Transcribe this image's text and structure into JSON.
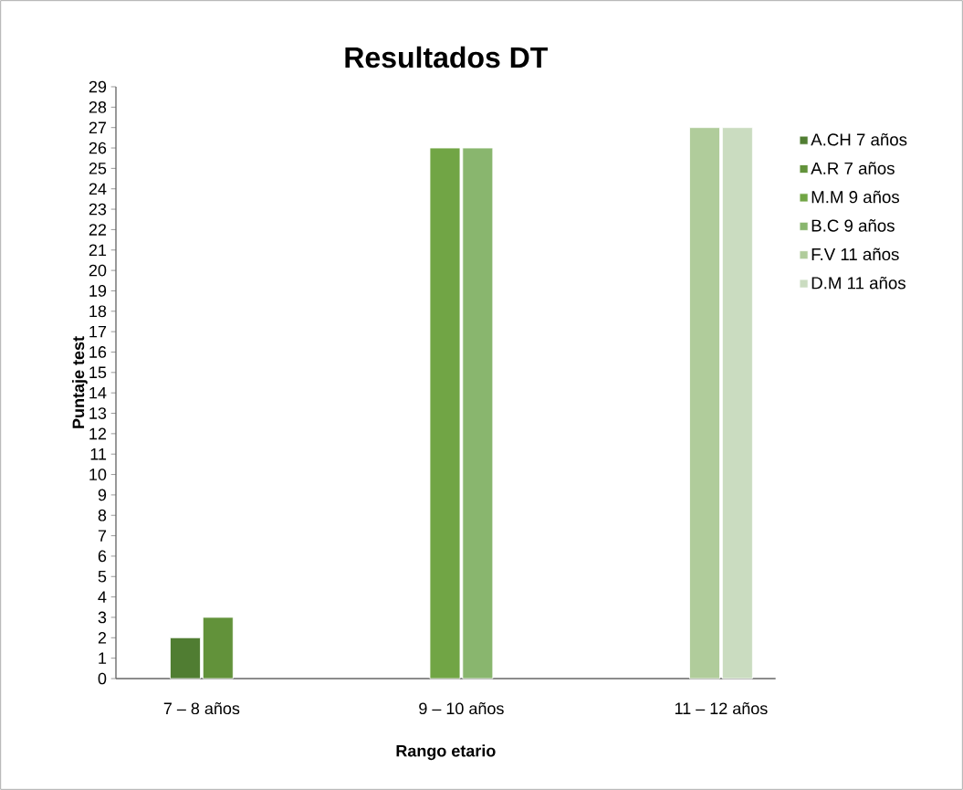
{
  "chart_data": {
    "type": "bar",
    "title": "Resultados DT",
    "xlabel": "Rango etario",
    "ylabel": "Puntaje test",
    "categories": [
      "7 – 8 años",
      "9 – 10 años",
      "11 – 12 años"
    ],
    "series": [
      {
        "name": "A.CH 7 años",
        "color": "#507d32",
        "values": [
          2,
          null,
          null
        ]
      },
      {
        "name": "A.R 7 años",
        "color": "#62923a",
        "values": [
          3,
          null,
          null
        ]
      },
      {
        "name": "M.M 9 años",
        "color": "#71a545",
        "values": [
          null,
          26,
          null
        ]
      },
      {
        "name": "B.C 9 años",
        "color": "#89b66e",
        "values": [
          null,
          26,
          null
        ]
      },
      {
        "name": "F.V 11 años",
        "color": "#b0cc9b",
        "values": [
          null,
          null,
          27
        ]
      },
      {
        "name": "D.M 11 años",
        "color": "#cadcc0",
        "values": [
          null,
          null,
          27
        ]
      }
    ],
    "ylim": [
      0,
      29
    ],
    "yticks": [
      0,
      1,
      2,
      3,
      4,
      5,
      6,
      7,
      8,
      9,
      10,
      11,
      12,
      13,
      14,
      15,
      16,
      17,
      18,
      19,
      20,
      21,
      22,
      23,
      24,
      25,
      26,
      27,
      28,
      29
    ],
    "grid": false,
    "legend": "right"
  }
}
